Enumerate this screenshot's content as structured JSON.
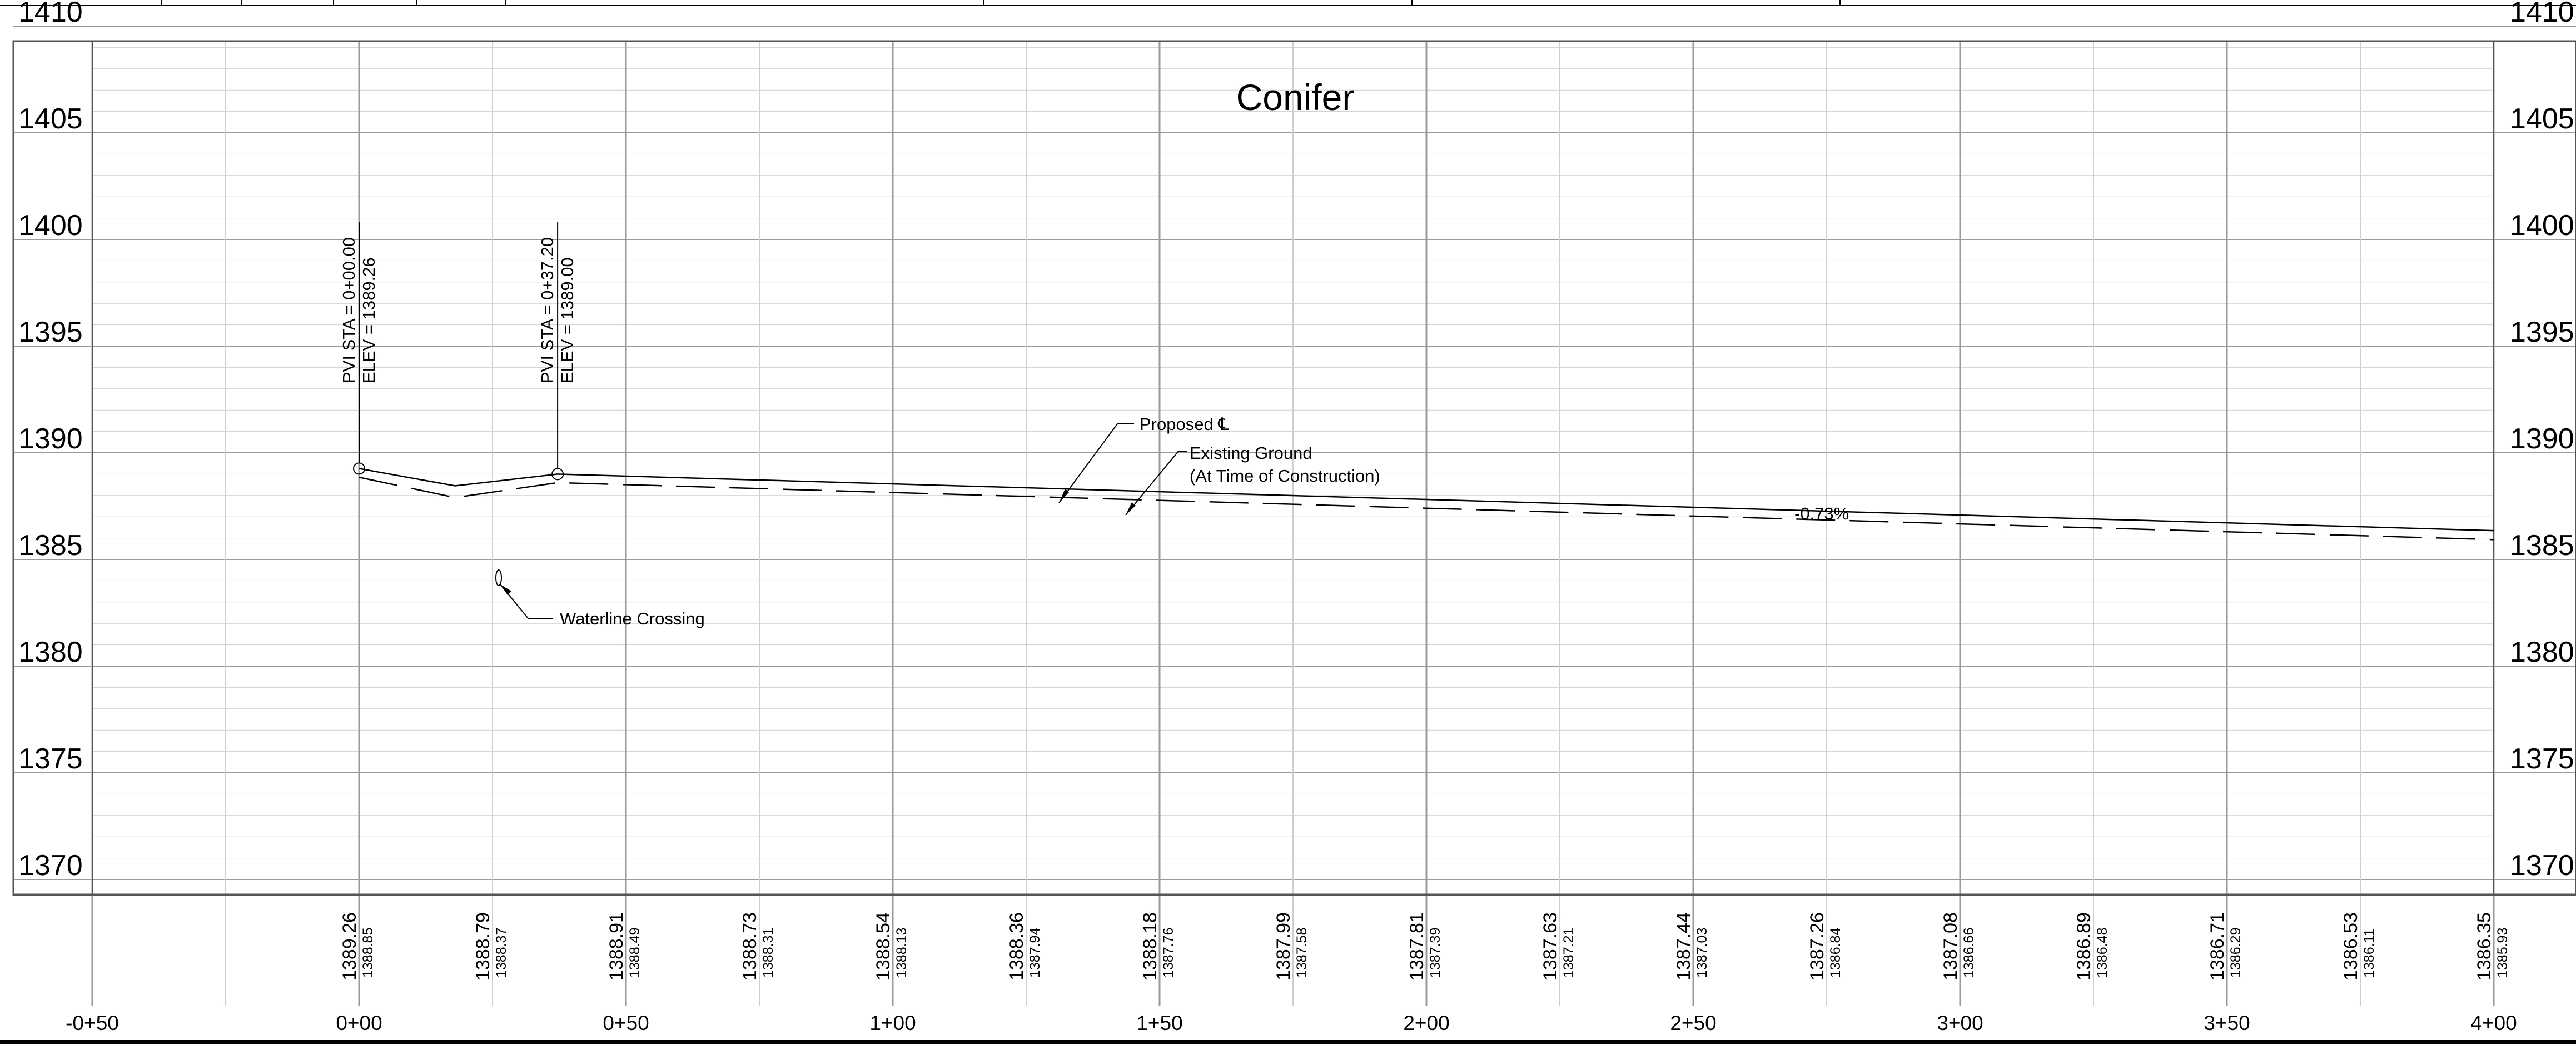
{
  "title": "Conifer",
  "elevation_labels": [
    "1410",
    "1405",
    "1400",
    "1395",
    "1390",
    "1385",
    "1380",
    "1375",
    "1370"
  ],
  "station_labels": [
    "-0+50",
    "0+00",
    "0+50",
    "1+00",
    "1+50",
    "2+00",
    "2+50",
    "3+00",
    "3+50",
    "4+00"
  ],
  "pvis": [
    {
      "station": 0.0,
      "elevation": 1389.26,
      "sta_text": "PVI STA = 0+00.00",
      "elev_text": "ELEV = 1389.26"
    },
    {
      "station": 37.2,
      "elevation": 1389.0,
      "sta_text": "PVI STA = 0+37.20",
      "elev_text": "ELEV = 1389.00"
    }
  ],
  "annotations": {
    "proposed": "Proposed ℄",
    "existing_line1": "Existing Ground",
    "existing_line2": "(At Time of Construction)",
    "grade": "-0.73%",
    "waterline": "Waterline Crossing"
  },
  "chart_data": {
    "type": "line",
    "title": "Conifer",
    "x_axis": {
      "unit": "station (ft)",
      "range": [
        -50,
        400
      ],
      "ticks": [
        -50,
        0,
        50,
        100,
        150,
        200,
        250,
        300,
        350,
        400
      ]
    },
    "y_axis": {
      "unit": "elevation",
      "range": [
        1370,
        1410
      ],
      "ticks": [
        1370,
        1375,
        1380,
        1385,
        1390,
        1395,
        1400,
        1405,
        1410
      ]
    },
    "grid": true,
    "series": [
      {
        "name": "Proposed ℄",
        "style": "solid",
        "x": [
          0,
          18,
          37.2,
          400
        ],
        "y": [
          1389.26,
          1388.45,
          1389.0,
          1386.35
        ]
      },
      {
        "name": "Existing Ground (At Time of Construction)",
        "style": "dashed",
        "x": [
          0,
          18,
          37.2,
          400
        ],
        "y": [
          1388.85,
          1387.9,
          1388.6,
          1385.93
        ]
      }
    ],
    "waterline_crossing": {
      "station": 26,
      "elevation": 1384.5
    },
    "bottom_table": [
      {
        "station": 0,
        "proposed": "1389.26",
        "existing": "1388.85"
      },
      {
        "station": 25,
        "proposed": "1388.79",
        "existing": "1388.37"
      },
      {
        "station": 50,
        "proposed": "1388.91",
        "existing": "1388.49"
      },
      {
        "station": 75,
        "proposed": "1388.73",
        "existing": "1388.31"
      },
      {
        "station": 100,
        "proposed": "1388.54",
        "existing": "1388.13"
      },
      {
        "station": 125,
        "proposed": "1388.36",
        "existing": "1387.94"
      },
      {
        "station": 150,
        "proposed": "1388.18",
        "existing": "1387.76"
      },
      {
        "station": 175,
        "proposed": "1387.99",
        "existing": "1387.58"
      },
      {
        "station": 200,
        "proposed": "1387.81",
        "existing": "1387.39"
      },
      {
        "station": 225,
        "proposed": "1387.63",
        "existing": "1387.21"
      },
      {
        "station": 250,
        "proposed": "1387.44",
        "existing": "1387.03"
      },
      {
        "station": 275,
        "proposed": "1387.26",
        "existing": "1386.84"
      },
      {
        "station": 300,
        "proposed": "1387.08",
        "existing": "1386.66"
      },
      {
        "station": 325,
        "proposed": "1386.89",
        "existing": "1386.48"
      },
      {
        "station": 350,
        "proposed": "1386.71",
        "existing": "1386.29"
      },
      {
        "station": 375,
        "proposed": "1386.53",
        "existing": "1386.11"
      },
      {
        "station": 400,
        "proposed": "1386.35",
        "existing": "1385.93"
      }
    ]
  }
}
